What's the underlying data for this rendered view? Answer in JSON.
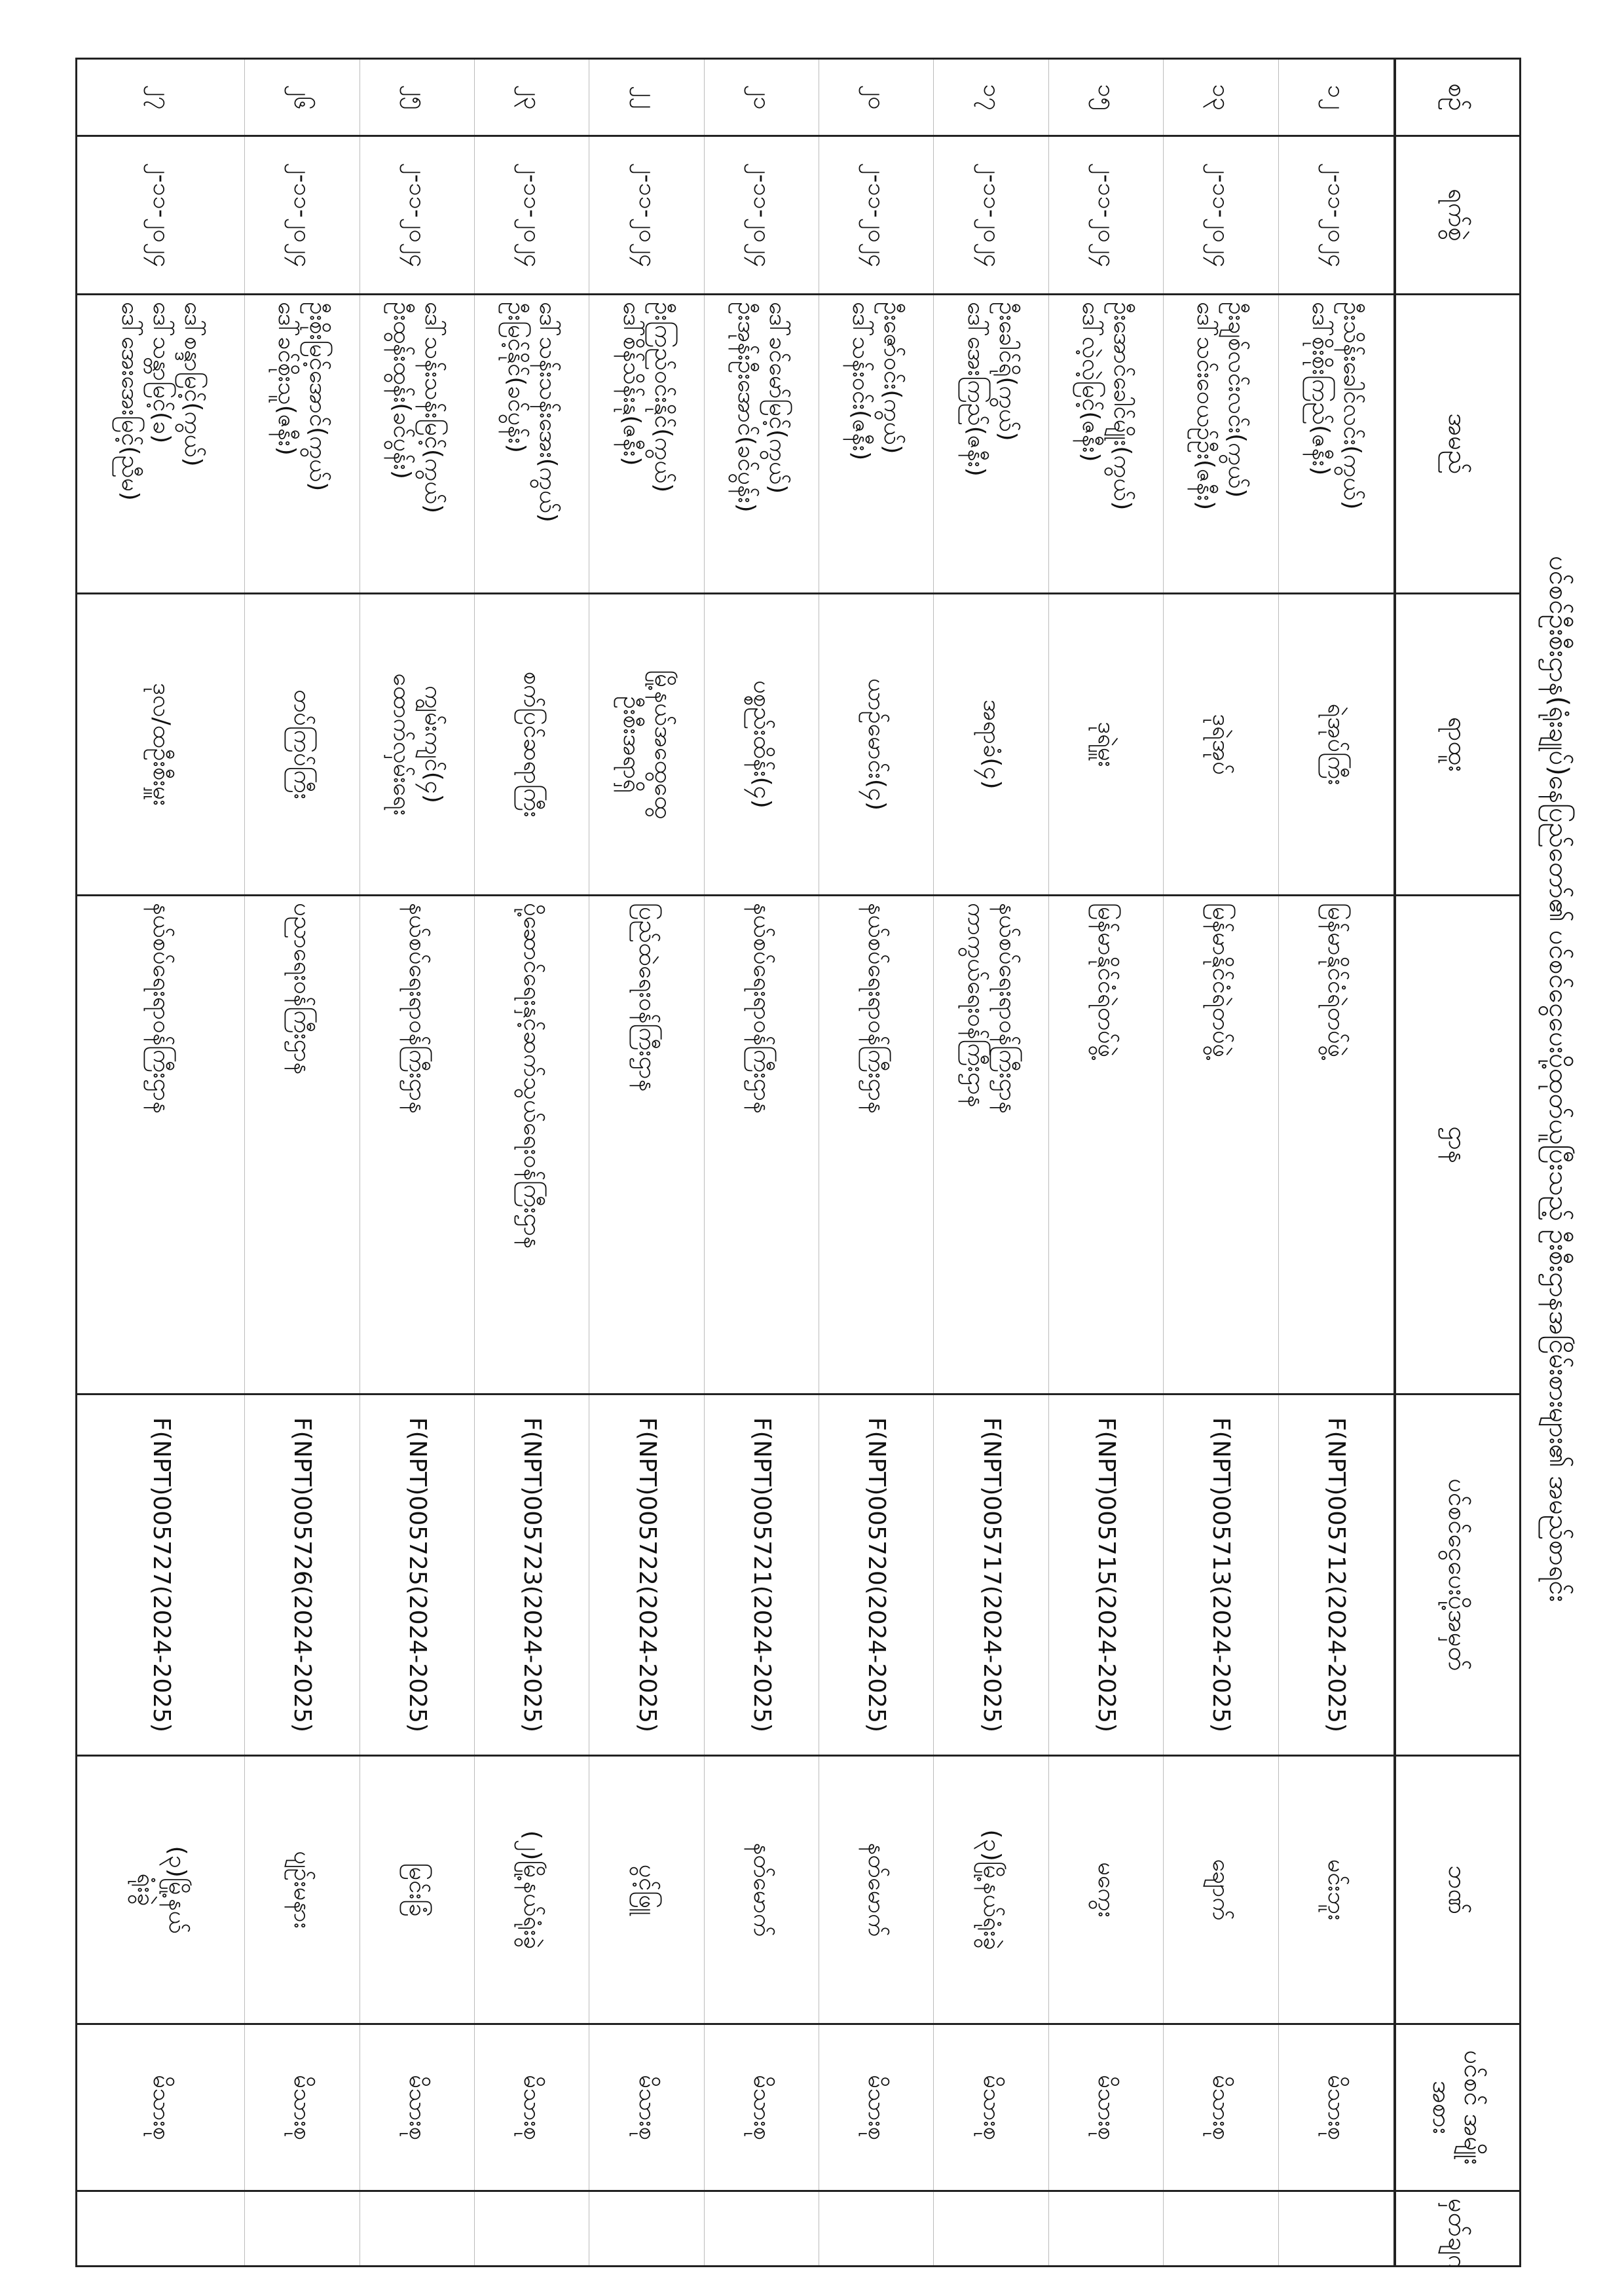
{
  "title": "ပင်စင်ဦးစီးဌာန(ရုံးချုပ်)နေပြည်တော်၏ ပင်စင်ငွေပေးပို့ထုတ်ယူပြီးသည့် ဦးစီးဌာနအငြိမ်းစားများ၏ အမည်စာရင်း",
  "headers": {
    "no": "စဉ်",
    "date": "ရက်စွဲ",
    "name": "အမည်",
    "rank": "ရာထူး",
    "dept": "ဌာန",
    "file": "ပင်စင်ငွေပေးပို့အမှတ်",
    "bank": "ဘဏ်",
    "type": "ပင်စင် အမျိုးအစား",
    "remark": "မှတ်ချက်"
  },
  "rows": [
    {
      "no": "၁၂",
      "date": "၂-၁၁-၂၀၂၄",
      "name": [
        "ဦးသိန်းခေါင်လင်း(ကွယ်)",
        "ဒေါ်စိုးစိုးကြည်(ဇနီး)"
      ],
      "rank": [
        "ရဲအုပ်ကြီး"
      ],
      "dept": [
        "မြန်မာနိုင်ငံရဲတပ်ဖွဲ့"
      ],
      "file": "F(NPT)005712(2024-2025)",
      "bank": [
        "မင်းဘူး"
      ],
      "type": "မိသားစု",
      "remark": ""
    },
    {
      "no": "၁၃",
      "date": "၂-၁၁-၂၀၂၄",
      "name": [
        "ဦးချစ်လင်းလင်း(ကွယ်)",
        "ဒေါ်သင်းဝေယဉ်ဦး(ဇနီး)"
      ],
      "rank": [
        "ဒုရဲအုပ်"
      ],
      "dept": [
        "မြန်မာနိုင်ငံရဲတပ်ဖွဲ့"
      ],
      "file": "F(NPT)005713(2024-2025)",
      "bank": [
        "ချောက်"
      ],
      "type": "မိသားစု",
      "remark": ""
    },
    {
      "no": "၁၅",
      "date": "၂-၁၁-၂၀၂၄",
      "name": [
        "ဦးအောင်ခေါင်မျိုး(ကွယ်)",
        "ဒေါ်လဲ့လဲ့မြင့်(ဇနီး)"
      ],
      "rank": [
        "ဒုရဲမှူး"
      ],
      "dept": [
        "မြန်မာနိုင်ငံရဲတပ်ဖွဲ့"
      ],
      "file": "F(NPT)005715(2024-2025)",
      "bank": [
        "မကွေး"
      ],
      "type": "မိသားစု",
      "remark": ""
    },
    {
      "no": "၁၇",
      "date": "၂-၁၁-၂၀၂၄",
      "name": [
        "ဦးခေါင်ရို(ကွယ်)",
        "ဒေါ်အေးကြည်(ဇနီး)"
      ],
      "rank": [
        "အရာခံ(၄)"
      ],
      "dept": [
        "နယ်စပ်ရေးရာဝန်ကြီးဌာန",
        "ကာကွယ်ရေးဝန်ကြီးဌာန"
      ],
      "file": "F(NPT)005717(2024-2025)",
      "bank": [
        "(၃)မြို့နယ်ရုံးခွဲ"
      ],
      "type": "မိသားစု",
      "remark": ""
    },
    {
      "no": "၂၀",
      "date": "၂-၁၁-၂၀၂၄",
      "name": [
        "ဦးဇော်ဝင်း(ကွယ်)",
        "ဒေါ်သန်းဝင်း(ဇနီး)"
      ],
      "rank": [
        "ယာဉ်မောင်း(၄)"
      ],
      "dept": [
        "နယ်စပ်ရေးရာဝန်ကြီးဌာန"
      ],
      "file": "F(NPT)005720(2024-2025)",
      "bank": [
        "နတ်မောက်"
      ],
      "type": "မိသားစု",
      "remark": ""
    },
    {
      "no": "၂၁",
      "date": "၂-၁၁-၂၀၂၄",
      "name": [
        "ဒေါ်ခင်မော်မြင့်(ကွယ်)",
        "ဦးအုန်းဦးအောင်(ခင်ပွန်း)"
      ],
      "rank": [
        "ပစ္စည်းထိန်း(၄)"
      ],
      "dept": [
        "နယ်စပ်ရေးရာဝန်ကြီးဌာန"
      ],
      "file": "F(NPT)005721(2024-2025)",
      "bank": [
        "နတ်မောက်"
      ],
      "type": "မိသားစု",
      "remark": ""
    },
    {
      "no": "၂၂",
      "date": "၂-၁၁-၂၀၂၄",
      "name": [
        "ဦးကြည်ဝင်းနိုင်(ကွယ်)",
        "ဒေါ်စိန်သိန်းနု(ဇနီး)"
      ],
      "rank": [
        "မြို့နယ်အထွေထွေ",
        "ဦးစီးအရာရှိ"
      ],
      "dept": [
        "ပြည်ထဲရေးဝန်ကြီးဌာန"
      ],
      "file": "F(NPT)005722(2024-2025)",
      "bank": [
        "ပွင့်ဖြူ"
      ],
      "type": "မိသားစု",
      "remark": ""
    },
    {
      "no": "၂၃",
      "date": "၂-၁၁-၂၀၂၄",
      "name": [
        "ဒေါ်သန်းသန်းအေး(ကွယ်)",
        "ဦးမြင့်နိုင်(ခင်ပွန်း)"
      ],
      "rank": [
        "စက်ပြင်ဆရာကြီး"
      ],
      "dept": [
        "ပို့ဆောင်ရေးနှင့်ဆက်သွယ်ရေးဝန်ကြီးဌာန"
      ],
      "file": "F(NPT)005723(2024-2025)",
      "bank": [
        "(၂)မြို့နယ်ရုံးခွဲ"
      ],
      "type": "မိသားစု",
      "remark": ""
    },
    {
      "no": "၂၅",
      "date": "၂-၁၁-၂၀၂၄",
      "name": [
        "ဒေါ်သန်းသန်းမြင့်(ကွယ်)",
        "ဦးထွန်းထွန်း(ခင်ပွန်း)"
      ],
      "rank": [
        "ကျွမ်းကျင်(၄)",
        "ထောက်လှမ်းရေး"
      ],
      "dept": [
        "နယ်စပ်ရေးရာဝန်ကြီးဌာန"
      ],
      "file": "F(NPT)005725(2024-2025)",
      "bank": [
        "မြင်းခြံ"
      ],
      "type": "မိသားစု",
      "remark": ""
    },
    {
      "no": "၂၆",
      "date": "၂-၁၁-၂၀၂၄",
      "name": [
        "ဦးစိုးမြင့်အောင်(ကွယ်)",
        "ဒေါ်ခင်စိုးသူ(ဇနီး)"
      ],
      "rank": [
        "တပ်ကြပ်ကြီး"
      ],
      "dept": [
        "ပညာရေးဝန်ကြီးဌာန"
      ],
      "file": "F(NPT)005726(2024-2025)",
      "bank": [
        "ပျဉ်းမနား"
      ],
      "type": "မိသားစု",
      "remark": ""
    },
    {
      "no": "၂၇",
      "date": "၂-၁၁-၂၀၂၄",
      "name": [
        "ဒေါ်စန္ဒာမြင့်(ကွယ်)",
        "ဒေါ်သန္တာမြင့်(ခ)",
        "ဒေါ်အေးအေးမြင့်(ညီမ)"
      ],
      "rank": [
        "ဒုလ/ထဦးစီးမှူး"
      ],
      "dept": [
        "နယ်စပ်ရေးရာဝန်ကြီးဌာန"
      ],
      "file": "F(NPT)005727(2024-2025)",
      "bank": [
        "(၃)မြို့နယ်",
        "ရုံးခွဲ"
      ],
      "type": "မိသားစု",
      "remark": ""
    }
  ]
}
